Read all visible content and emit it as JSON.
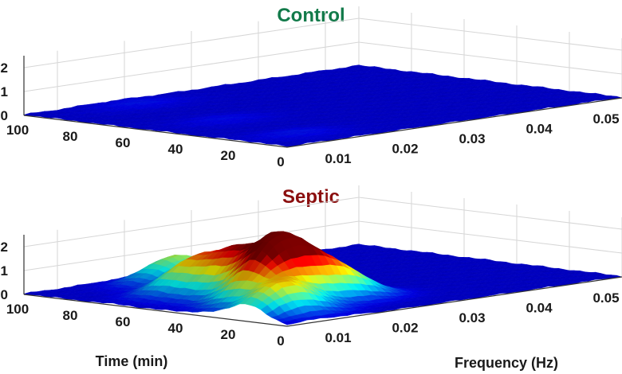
{
  "chart_data": [
    {
      "type": "surface",
      "title": "Control",
      "title_color": "#127a4a",
      "colormap": "jet",
      "x_axis": {
        "label": "",
        "ticks": [
          "100",
          "80",
          "60",
          "40",
          "20",
          "0"
        ],
        "range": [
          0,
          100
        ]
      },
      "y_axis": {
        "label": "",
        "ticks": [
          "0.01",
          "0.02",
          "0.03",
          "0.04",
          "0.05"
        ],
        "range": [
          0.005,
          0.055
        ]
      },
      "z_axis": {
        "ticks": [
          "0",
          "1",
          "2"
        ],
        "range": [
          0,
          2.5
        ]
      },
      "peaks": [
        {
          "time_min": 90,
          "freq_hz": 0.018,
          "amplitude": 0.12
        },
        {
          "time_min": 50,
          "freq_hz": 0.015,
          "amplitude": 0.1
        },
        {
          "time_min": 15,
          "freq_hz": 0.012,
          "amplitude": 0.12
        }
      ]
    },
    {
      "type": "surface",
      "title": "Septic",
      "title_color": "#8b0e0e",
      "colormap": "jet",
      "x_axis": {
        "label": "Time (min)",
        "ticks": [
          "100",
          "80",
          "60",
          "40",
          "20",
          "0"
        ],
        "range": [
          0,
          100
        ]
      },
      "y_axis": {
        "label": "Frequency (Hz)",
        "ticks": [
          "0.01",
          "0.02",
          "0.03",
          "0.04",
          "0.05"
        ],
        "range": [
          0.005,
          0.055
        ]
      },
      "z_axis": {
        "ticks": [
          "0",
          "1",
          "2"
        ],
        "range": [
          0,
          2.5
        ]
      },
      "peaks": [
        {
          "time_min": 85,
          "freq_hz": 0.022,
          "amplitude": 1.1
        },
        {
          "time_min": 65,
          "freq_hz": 0.017,
          "amplitude": 1.4
        },
        {
          "time_min": 52,
          "freq_hz": 0.018,
          "amplitude": 1.7
        },
        {
          "time_min": 40,
          "freq_hz": 0.018,
          "amplitude": 1.75
        },
        {
          "time_min": 30,
          "freq_hz": 0.015,
          "amplitude": 2.2
        },
        {
          "time_min": 25,
          "freq_hz": 0.022,
          "amplitude": 1.3
        },
        {
          "time_min": 15,
          "freq_hz": 0.01,
          "amplitude": 1.4
        }
      ]
    }
  ]
}
